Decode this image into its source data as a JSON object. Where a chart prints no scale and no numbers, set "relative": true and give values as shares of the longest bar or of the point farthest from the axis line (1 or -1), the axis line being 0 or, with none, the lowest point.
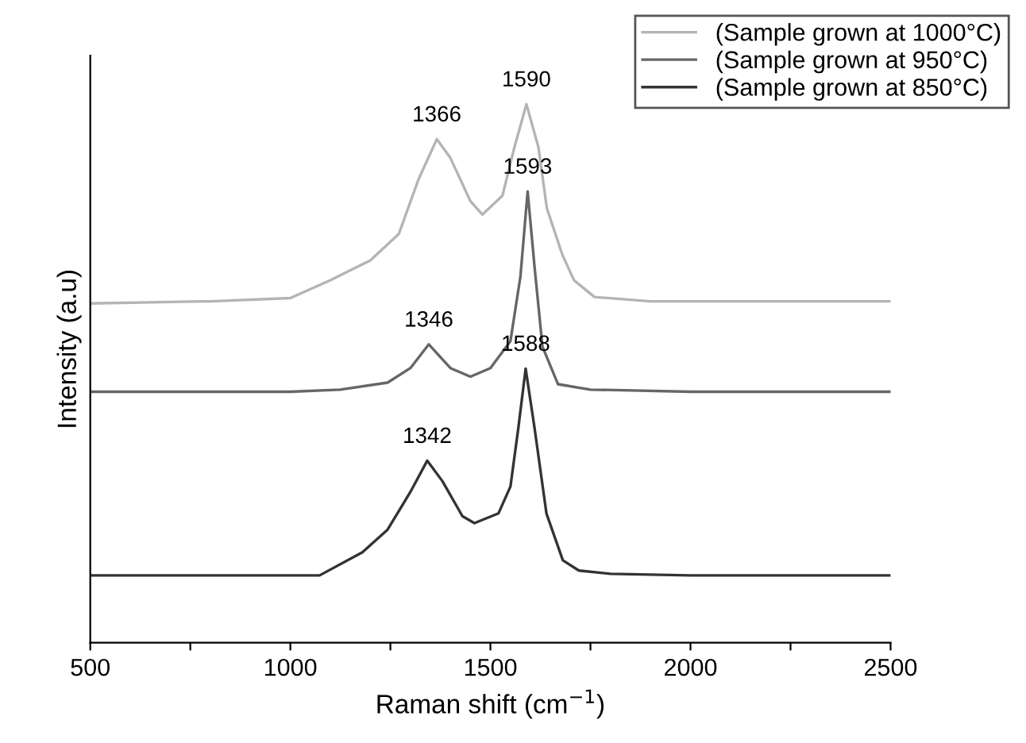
{
  "chart_data": {
    "type": "line",
    "xlabel": "Raman shift (cm$^{−1}$)",
    "ylabel": "Intensity (a.u)",
    "relative": true,
    "xlim": [
      500,
      2500
    ],
    "xticks": [
      500,
      {
        "value": 750,
        "label": null
      },
      1000,
      {
        "value": 1250,
        "label": null
      },
      1500,
      {
        "value": 1750,
        "label": null
      },
      2000,
      {
        "value": 2250,
        "label": null
      },
      2500
    ],
    "grid": false,
    "legend": "top right",
    "marker": "none",
    "line_style": "solid",
    "tick_labels": "x",
    "series": [
      {
        "name": "(Sample grown at 1000°C)",
        "color": "#b4b4b4",
        "x": [
          500,
          800,
          1000,
          1100,
          1200,
          1271,
          1320,
          1366,
          1400,
          1450,
          1480,
          1530,
          1560,
          1590,
          1620,
          1641,
          1680,
          1709,
          1760,
          1900,
          2200,
          2500
        ],
        "values": [
          0.63,
          0.634,
          0.64,
          0.673,
          0.71,
          0.759,
          0.86,
          0.935,
          0.9,
          0.82,
          0.795,
          0.83,
          0.92,
          1.0,
          0.92,
          0.807,
          0.72,
          0.673,
          0.642,
          0.634,
          0.634,
          0.634
        ]
      },
      {
        "name": "(Sample grown at 950°C)",
        "color": "#666666",
        "x": [
          500,
          1000,
          1124,
          1243,
          1300,
          1346,
          1400,
          1450,
          1500,
          1550,
          1575,
          1593,
          1610,
          1630,
          1669,
          1750,
          2000,
          2500
        ],
        "values": [
          0.466,
          0.466,
          0.47,
          0.483,
          0.51,
          0.554,
          0.51,
          0.494,
          0.51,
          0.56,
          0.68,
          0.838,
          0.7,
          0.55,
          0.48,
          0.47,
          0.466,
          0.466
        ]
      },
      {
        "name": "(Sample grown at 850°C)",
        "color": "#333333",
        "x": [
          500,
          1000,
          1073,
          1180,
          1243,
          1300,
          1342,
          1380,
          1430,
          1460,
          1520,
          1550,
          1570,
          1588,
          1610,
          1640,
          1681,
          1721,
          1800,
          2000,
          2500
        ],
        "values": [
          0.125,
          0.125,
          0.125,
          0.168,
          0.21,
          0.28,
          0.338,
          0.3,
          0.235,
          0.222,
          0.24,
          0.29,
          0.4,
          0.509,
          0.4,
          0.24,
          0.153,
          0.134,
          0.128,
          0.125,
          0.125
        ]
      }
    ],
    "annotations": [
      {
        "text": "1366",
        "x": 1366,
        "y": 0.935
      },
      {
        "text": "1590",
        "x": 1590,
        "y": 1.0
      },
      {
        "text": "1346",
        "x": 1346,
        "y": 0.554
      },
      {
        "text": "1593",
        "x": 1593,
        "y": 0.838
      },
      {
        "text": "1342",
        "x": 1342,
        "y": 0.338
      },
      {
        "text": "1588",
        "x": 1588,
        "y": 0.509
      }
    ]
  }
}
